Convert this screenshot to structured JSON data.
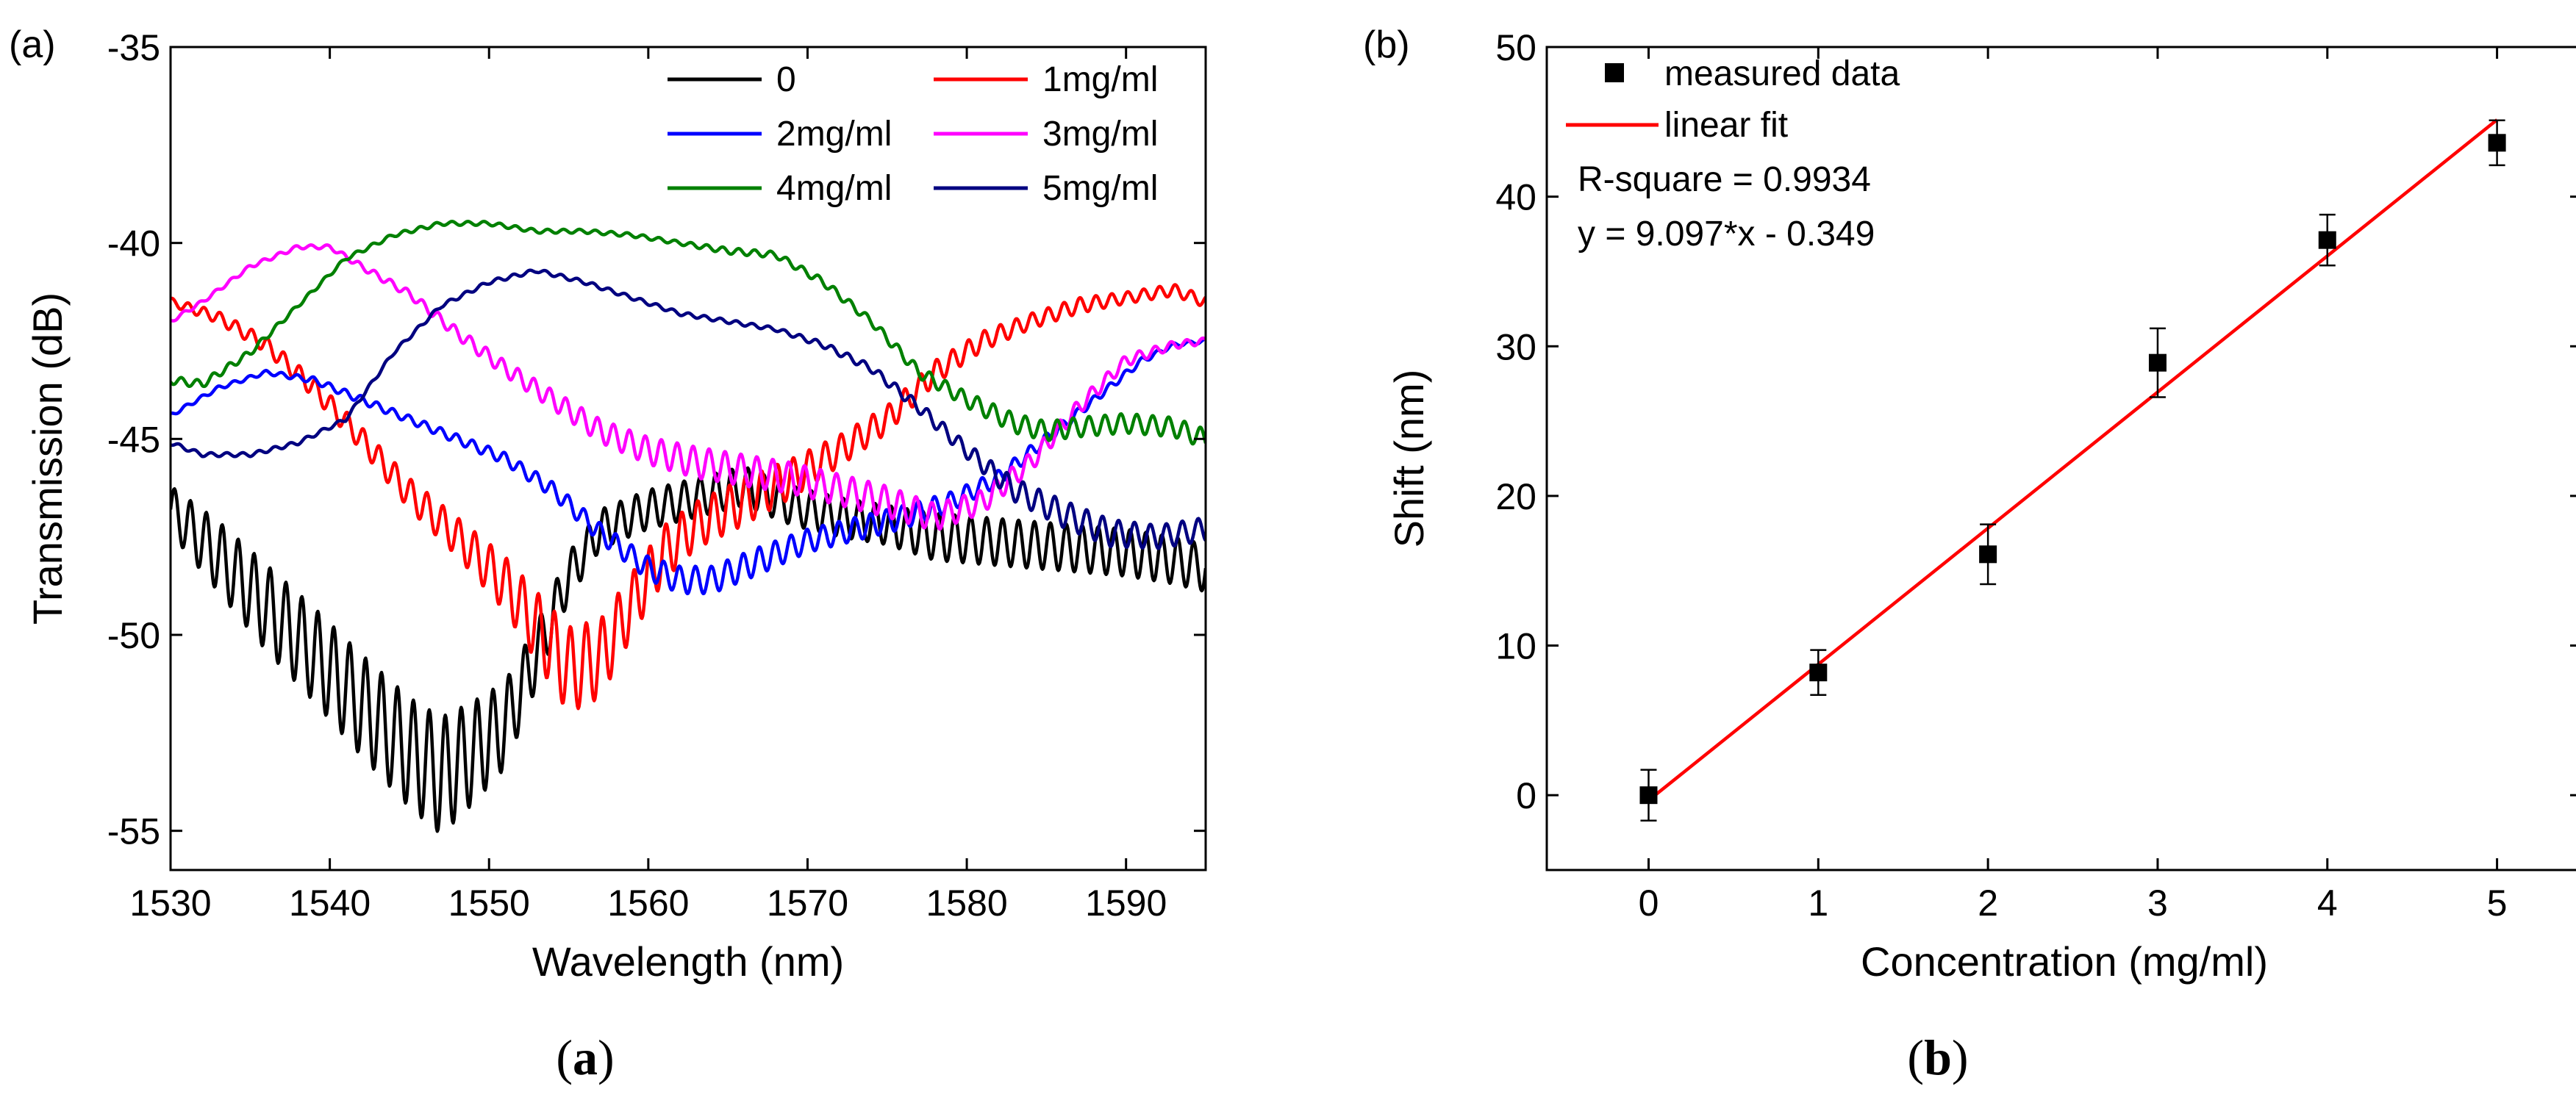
{
  "chart_data": [
    {
      "type": "line",
      "panel_label": "(a)",
      "caption": "(a)",
      "caption_letter": "a",
      "xlabel": "Wavelength (nm)",
      "ylabel": "Transmission (dB)",
      "xlim": [
        1530,
        1595
      ],
      "ylim": [
        -56,
        -35
      ],
      "xticks": [
        1530,
        1540,
        1550,
        1560,
        1570,
        1580,
        1590
      ],
      "yticks": [
        -55,
        -50,
        -45,
        -40,
        -35
      ],
      "series": [
        {
          "name": "0",
          "color": "#000000",
          "x": [
            1530,
            1533,
            1536,
            1539,
            1542,
            1545,
            1547,
            1549,
            1551,
            1553,
            1555,
            1557,
            1560,
            1563,
            1566,
            1569,
            1572,
            1575,
            1578,
            1581,
            1584,
            1587,
            1590,
            1593,
            1595
          ],
          "y": [
            -46.8,
            -48.0,
            -49.3,
            -50.5,
            -51.8,
            -53.0,
            -53.6,
            -53.0,
            -52.3,
            -50.5,
            -48.5,
            -47.3,
            -46.8,
            -46.5,
            -46.2,
            -46.7,
            -47.0,
            -47.2,
            -47.5,
            -47.6,
            -47.7,
            -47.8,
            -47.9,
            -48.1,
            -48.3
          ],
          "ripple": [
            0.6,
            0.9,
            1.1,
            1.2,
            1.3,
            1.4,
            1.5,
            1.3,
            1.1,
            0.8,
            0.6,
            0.5,
            0.5,
            0.5,
            0.5,
            0.5,
            0.5,
            0.5,
            0.6,
            0.6,
            0.6,
            0.6,
            0.6,
            0.6,
            0.6
          ]
        },
        {
          "name": "1mg/ml",
          "color": "#ff0000",
          "x": [
            1530,
            1533,
            1536,
            1539,
            1542,
            1545,
            1548,
            1551,
            1553,
            1555,
            1557,
            1559,
            1561,
            1563,
            1566,
            1569,
            1572,
            1575,
            1578,
            1581,
            1584,
            1587,
            1590,
            1593,
            1595
          ],
          "y": [
            -41.5,
            -41.9,
            -42.6,
            -43.7,
            -45.0,
            -46.4,
            -47.5,
            -48.7,
            -49.8,
            -50.9,
            -50.6,
            -49.2,
            -47.9,
            -47.2,
            -46.6,
            -46.0,
            -45.3,
            -44.5,
            -43.3,
            -42.5,
            -42.0,
            -41.6,
            -41.4,
            -41.2,
            -41.5
          ],
          "ripple": [
            0.1,
            0.15,
            0.2,
            0.25,
            0.3,
            0.4,
            0.5,
            0.7,
            0.9,
            1.1,
            1.0,
            0.8,
            0.7,
            0.6,
            0.6,
            0.5,
            0.4,
            0.35,
            0.3,
            0.25,
            0.2,
            0.2,
            0.15,
            0.15,
            0.15
          ]
        },
        {
          "name": "2mg/ml",
          "color": "#0000ff",
          "x": [
            1530,
            1533,
            1536,
            1539,
            1542,
            1545,
            1548,
            1551,
            1554,
            1557,
            1560,
            1562,
            1564,
            1567,
            1570,
            1573,
            1576,
            1579,
            1582,
            1585,
            1588,
            1591,
            1593,
            1595
          ],
          "y": [
            -44.4,
            -43.7,
            -43.3,
            -43.5,
            -44.0,
            -44.5,
            -45.0,
            -45.5,
            -46.3,
            -47.4,
            -48.3,
            -48.6,
            -48.6,
            -48.1,
            -47.6,
            -47.3,
            -47.0,
            -46.6,
            -46.0,
            -45.0,
            -44.0,
            -43.0,
            -42.6,
            -42.5
          ],
          "ripple": [
            0.05,
            0.05,
            0.05,
            0.08,
            0.1,
            0.1,
            0.12,
            0.15,
            0.2,
            0.25,
            0.3,
            0.35,
            0.35,
            0.35,
            0.3,
            0.3,
            0.3,
            0.25,
            0.2,
            0.15,
            0.1,
            0.08,
            0.05,
            0.05
          ]
        },
        {
          "name": "3mg/ml",
          "color": "#ff00ff",
          "x": [
            1530,
            1532,
            1535,
            1538,
            1540,
            1542,
            1545,
            1548,
            1551,
            1554,
            1557,
            1560,
            1563,
            1566,
            1569,
            1572,
            1575,
            1578,
            1581,
            1584,
            1587,
            1590,
            1593,
            1595
          ],
          "y": [
            -42.0,
            -41.5,
            -40.6,
            -40.1,
            -40.1,
            -40.6,
            -41.3,
            -42.3,
            -43.2,
            -44.0,
            -44.8,
            -45.3,
            -45.6,
            -45.8,
            -46.0,
            -46.3,
            -46.6,
            -47.0,
            -46.6,
            -45.6,
            -44.2,
            -43.0,
            -42.6,
            -42.5
          ],
          "ripple": [
            0.05,
            0.05,
            0.05,
            0.05,
            0.05,
            0.08,
            0.1,
            0.15,
            0.2,
            0.25,
            0.3,
            0.35,
            0.4,
            0.4,
            0.4,
            0.4,
            0.4,
            0.35,
            0.3,
            0.25,
            0.2,
            0.15,
            0.1,
            0.08
          ]
        },
        {
          "name": "4mg/ml",
          "color": "#008000",
          "x": [
            1530,
            1532,
            1535,
            1538,
            1541,
            1544,
            1547,
            1550,
            1553,
            1556,
            1559,
            1562,
            1565,
            1568,
            1571,
            1574,
            1577,
            1580,
            1583,
            1585,
            1587,
            1590,
            1593,
            1595
          ],
          "y": [
            -43.5,
            -43.6,
            -42.8,
            -41.6,
            -40.4,
            -39.8,
            -39.5,
            -39.5,
            -39.7,
            -39.7,
            -39.8,
            -40.0,
            -40.2,
            -40.3,
            -41.0,
            -42.0,
            -43.3,
            -44.0,
            -44.6,
            -44.8,
            -44.7,
            -44.6,
            -44.7,
            -45.0
          ],
          "ripple": [
            0.1,
            0.1,
            0.08,
            0.05,
            0.05,
            0.05,
            0.05,
            0.05,
            0.05,
            0.05,
            0.05,
            0.05,
            0.08,
            0.08,
            0.1,
            0.1,
            0.15,
            0.2,
            0.25,
            0.25,
            0.25,
            0.25,
            0.25,
            0.25
          ]
        },
        {
          "name": "5mg/ml",
          "color": "#000080",
          "x": [
            1530,
            1532,
            1535,
            1538,
            1541,
            1544,
            1547,
            1550,
            1553,
            1556,
            1559,
            1562,
            1565,
            1568,
            1571,
            1574,
            1577,
            1580,
            1583,
            1586,
            1589,
            1592,
            1595
          ],
          "y": [
            -45.1,
            -45.4,
            -45.4,
            -45.1,
            -44.5,
            -42.8,
            -41.6,
            -41.0,
            -40.7,
            -41.0,
            -41.4,
            -41.8,
            -42.0,
            -42.2,
            -42.6,
            -43.2,
            -44.2,
            -45.3,
            -46.3,
            -46.9,
            -47.4,
            -47.5,
            -47.3
          ],
          "ripple": [
            0.05,
            0.05,
            0.05,
            0.05,
            0.05,
            0.05,
            0.05,
            0.05,
            0.05,
            0.05,
            0.05,
            0.05,
            0.05,
            0.05,
            0.08,
            0.1,
            0.15,
            0.2,
            0.3,
            0.35,
            0.35,
            0.3,
            0.3
          ]
        }
      ]
    },
    {
      "type": "scatter",
      "panel_label": "(b)",
      "caption": "(b)",
      "caption_letter": "b",
      "xlabel": "Concentration (mg/ml)",
      "ylabel": "Shift (nm)",
      "xlim": [
        -0.6,
        5.5
      ],
      "ylim": [
        -5,
        50
      ],
      "xticks": [
        0,
        1,
        2,
        3,
        4,
        5
      ],
      "yticks": [
        0,
        10,
        20,
        30,
        40,
        50
      ],
      "series": [
        {
          "name": "measured data",
          "color": "#000000",
          "x": [
            0,
            1,
            2,
            3,
            4,
            5
          ],
          "y": [
            0,
            8.2,
            16.1,
            28.9,
            37.1,
            43.6
          ],
          "error": [
            1.7,
            1.5,
            2.0,
            2.3,
            1.7,
            1.5
          ]
        },
        {
          "name": "linear fit",
          "color": "#ff0000",
          "x": [
            0,
            5
          ],
          "y": [
            -0.349,
            45.136
          ]
        }
      ],
      "annotations": [
        "R-square = 0.9934",
        "y = 9.097*x - 0.349"
      ]
    }
  ]
}
